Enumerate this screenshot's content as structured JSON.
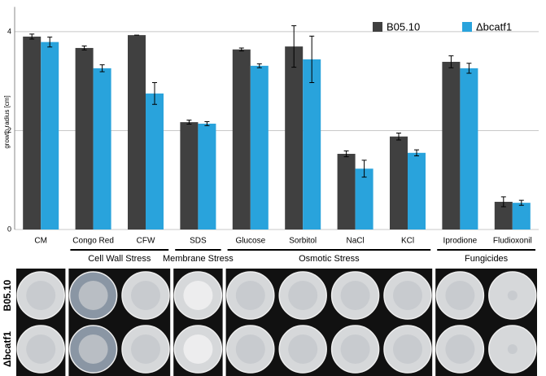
{
  "chart_data": {
    "type": "bar",
    "y_label": "growth radius [cm]",
    "categories": [
      "CM",
      "Congo Red",
      "CFW",
      "SDS",
      "Glucose",
      "Sorbitol",
      "NaCl",
      "KCl",
      "Iprodione",
      "Fludioxonil"
    ],
    "series": [
      {
        "name": "B05.10",
        "color": "#404040",
        "values": [
          3.9,
          3.67,
          3.93,
          2.17,
          3.64,
          3.7,
          1.53,
          1.88,
          3.39,
          0.56
        ],
        "errors": [
          0.05,
          0.04,
          0,
          0.04,
          0.03,
          0.42,
          0.06,
          0.07,
          0.12,
          0.1
        ]
      },
      {
        "name": "Δbcatf1",
        "color": "#29a3dc",
        "values": [
          3.79,
          3.26,
          2.75,
          2.14,
          3.31,
          3.44,
          1.23,
          1.55,
          3.26,
          0.54
        ],
        "errors": [
          0.1,
          0.07,
          0.22,
          0.04,
          0.04,
          0.47,
          0.17,
          0.06,
          0.1,
          0.05
        ]
      }
    ],
    "groups": [
      "Cell Wall Stress",
      "Membrane Stress",
      "Osmotic Stress",
      "Fungicides"
    ],
    "photo_rows": [
      "B05.10",
      "Δbcatf1"
    ],
    "ylim": [
      0,
      4.5
    ],
    "yticks": [
      0,
      2,
      4
    ],
    "grid": true,
    "legend": "top-right"
  }
}
